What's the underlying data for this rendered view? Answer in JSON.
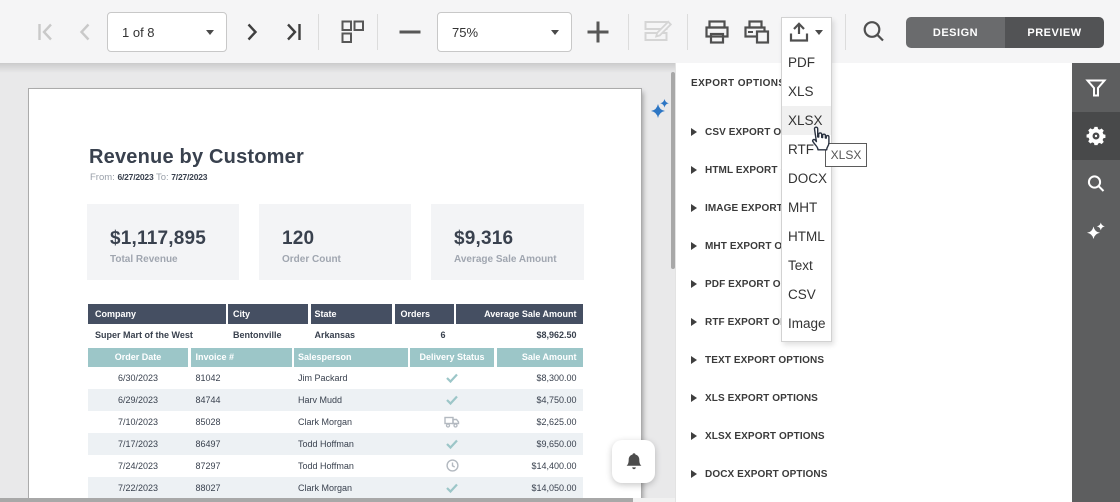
{
  "toolbar": {
    "page_selector": "1 of 8",
    "zoom_level": "75%",
    "design_label": "DESIGN",
    "preview_label": "PREVIEW"
  },
  "export_menu": {
    "items": [
      "PDF",
      "XLS",
      "XLSX",
      "RTF",
      "DOCX",
      "MHT",
      "HTML",
      "Text",
      "CSV",
      "Image"
    ],
    "hovered_item": "XLSX",
    "tooltip": "XLSX"
  },
  "panel": {
    "title": "EXPORT OPTIONS",
    "sections": [
      "CSV EXPORT OPTIONS",
      "HTML EXPORT OPTIONS",
      "IMAGE EXPORT OPTIONS",
      "MHT EXPORT OPTIONS",
      "PDF EXPORT OPTIONS",
      "RTF EXPORT OPTIONS",
      "TEXT EXPORT OPTIONS",
      "XLS EXPORT OPTIONS",
      "XLSX EXPORT OPTIONS",
      "DOCX EXPORT OPTIONS"
    ]
  },
  "report": {
    "title": "Revenue by Customer",
    "date_range": {
      "from_label": "From:",
      "from": "6/27/2023",
      "to_label": "To:",
      "to": "7/27/2023"
    },
    "stats": [
      {
        "value": "$1,117,895",
        "label": "Total Revenue"
      },
      {
        "value": "120",
        "label": "Order Count"
      },
      {
        "value": "$9,316",
        "label": "Average Sale Amount"
      }
    ],
    "table": {
      "headers": [
        "Company",
        "City",
        "State",
        "Orders",
        "Average Sale Amount"
      ],
      "customer_row": {
        "company": "Super Mart of the West",
        "city": "Bentonville",
        "state": "Arkansas",
        "orders": "6",
        "avg_sale": "$8,962.50"
      },
      "detail_headers": [
        "Order Date",
        "Invoice #",
        "Salesperson",
        "Delivery Status",
        "Sale Amount"
      ],
      "detail_rows": [
        {
          "date": "6/30/2023",
          "invoice": "81042",
          "salesperson": "Jim Packard",
          "status": "delivered",
          "amount": "$8,300.00"
        },
        {
          "date": "6/29/2023",
          "invoice": "84744",
          "salesperson": "Harv Mudd",
          "status": "delivered",
          "amount": "$4,750.00"
        },
        {
          "date": "7/10/2023",
          "invoice": "85028",
          "salesperson": "Clark Morgan",
          "status": "shipping",
          "amount": "$2,625.00"
        },
        {
          "date": "7/17/2023",
          "invoice": "86497",
          "salesperson": "Todd Hoffman",
          "status": "delivered",
          "amount": "$9,650.00"
        },
        {
          "date": "7/24/2023",
          "invoice": "87297",
          "salesperson": "Todd Hoffman",
          "status": "pending",
          "amount": "$14,400.00"
        },
        {
          "date": "7/22/2023",
          "invoice": "88027",
          "salesperson": "Clark Morgan",
          "status": "delivered",
          "amount": "$14,050.00"
        }
      ]
    }
  },
  "colors": {
    "accent_blue": "#2d76c4",
    "table_header": "#454f62",
    "table_subheader": "#9cc6c8",
    "sidebar": "#5d5e5f",
    "text_dark": "#39414e"
  }
}
